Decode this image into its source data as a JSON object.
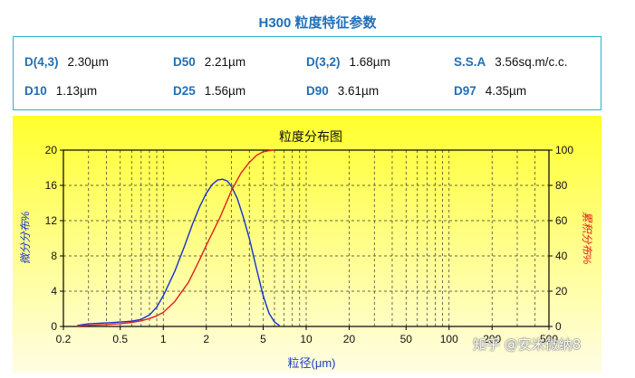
{
  "header": {
    "title": "H300 粒度特征参数"
  },
  "params": [
    {
      "key": "D(4,3)",
      "value": "2.30µm"
    },
    {
      "key": "D50",
      "value": "2.21µm"
    },
    {
      "key": "D(3,2)",
      "value": "1.68µm"
    },
    {
      "key": "S.S.A",
      "value": "3.56sq.m/c.c."
    },
    {
      "key": "D10",
      "value": "1.13µm"
    },
    {
      "key": "D25",
      "value": "1.56µm"
    },
    {
      "key": "D90",
      "value": "3.61µm"
    },
    {
      "key": "D97",
      "value": "4.35µm"
    }
  ],
  "watermark": "知乎 @安米微纳8",
  "colors": {
    "background_top": "#ffff33",
    "background_bottom": "#fffde0",
    "blue_series": "#1530d0",
    "red_series": "#e02020"
  },
  "chart_data": {
    "type": "line",
    "title": "粒度分布图",
    "xlabel": "粒径(μm)",
    "ylabel_left": "微分分布%",
    "ylabel_right": "累积分布%",
    "x_scale": "log",
    "xlim": [
      0.2,
      500
    ],
    "ylim_left": [
      0,
      20
    ],
    "ylim_right": [
      0,
      100
    ],
    "x_ticks": [
      "0.2",
      "0.5",
      "1",
      "2",
      "5",
      "10",
      "20",
      "50",
      "100",
      "200",
      "500"
    ],
    "y_ticks_left": [
      "0",
      "4",
      "8",
      "12",
      "16",
      "20"
    ],
    "y_ticks_right": [
      "0",
      "20",
      "40",
      "60",
      "80",
      "100"
    ],
    "grid": true,
    "series": [
      {
        "axis": "left",
        "color": "#1530d0",
        "x": [
          0.25,
          0.3,
          0.4,
          0.5,
          0.6,
          0.7,
          0.8,
          0.9,
          1.0,
          1.2,
          1.4,
          1.6,
          1.8,
          2.0,
          2.2,
          2.4,
          2.6,
          2.8,
          3.0,
          3.3,
          3.6,
          4.0,
          4.5,
          5.0,
          5.5,
          6.0,
          6.5
        ],
        "y": [
          0.1,
          0.3,
          0.4,
          0.5,
          0.6,
          0.8,
          1.3,
          2.2,
          3.5,
          6.2,
          9.0,
          11.6,
          13.6,
          15.1,
          16.1,
          16.6,
          16.7,
          16.5,
          15.9,
          14.5,
          12.6,
          10.0,
          6.5,
          3.5,
          1.5,
          0.5,
          0.1
        ]
      },
      {
        "axis": "right",
        "color": "#e02020",
        "x": [
          0.25,
          0.3,
          0.4,
          0.5,
          0.6,
          0.7,
          0.8,
          0.9,
          1.0,
          1.2,
          1.5,
          1.8,
          2.0,
          2.5,
          3.0,
          3.5,
          4.0,
          4.5,
          5.0,
          5.5,
          6.0
        ],
        "y": [
          0.3,
          0.6,
          1.1,
          1.6,
          2.3,
          3.2,
          4.5,
          6.0,
          8.0,
          14.0,
          25.0,
          38.0,
          46.0,
          62.0,
          77.0,
          87.0,
          93.0,
          97.0,
          99.0,
          99.7,
          100.0
        ]
      }
    ]
  }
}
